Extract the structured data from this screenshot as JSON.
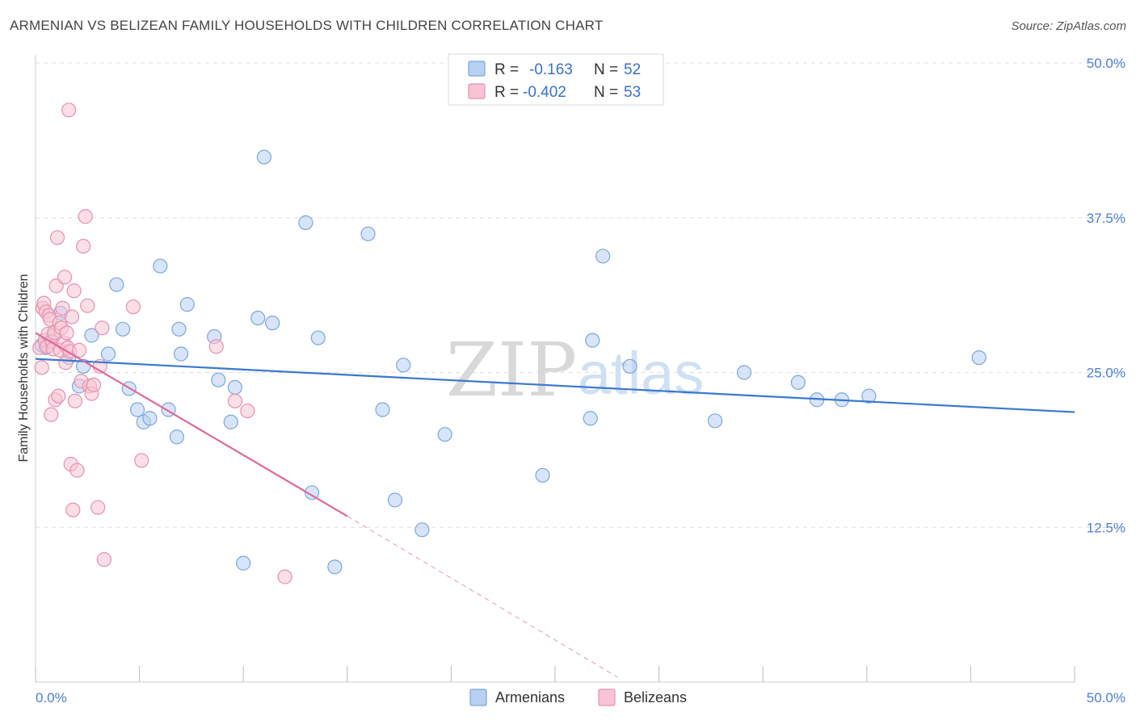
{
  "title": "ARMENIAN VS BELIZEAN FAMILY HOUSEHOLDS WITH CHILDREN CORRELATION CHART",
  "source": "Source: ZipAtlas.com",
  "watermark": {
    "zip": "ZIP",
    "atlas": "atlas"
  },
  "colors": {
    "armenians_fill": "#b8d0f2",
    "armenians_stroke": "#7aa6e0",
    "armenians_line": "#3a78d0",
    "belizeans_fill": "#f8c4d4",
    "belizeans_stroke": "#e890ac",
    "belizeans_line": "#e06898",
    "tick_text": "#4a7fd4",
    "grid": "#dddddd"
  },
  "legend": {
    "rows": [
      {
        "r_label": "R = ",
        "r_value": "-0.163",
        "n_label": "N = ",
        "n_value": "52"
      },
      {
        "r_label": "R = ",
        "r_value": "-0.402",
        "n_label": "N = ",
        "n_value": "53"
      }
    ]
  },
  "chart_data": {
    "type": "scatter",
    "title": "ARMENIAN VS BELIZEAN FAMILY HOUSEHOLDS WITH CHILDREN CORRELATION CHART",
    "xlabel": "",
    "ylabel": "Family Households with Children",
    "xlim": [
      0,
      50
    ],
    "ylim": [
      0,
      50
    ],
    "x_tick_labels": [
      "0.0%",
      "50.0%"
    ],
    "y_ticks": [
      12.5,
      25.0,
      37.5,
      50.0
    ],
    "y_tick_labels": [
      "12.5%",
      "25.0%",
      "37.5%",
      "50.0%"
    ],
    "grid": true,
    "legend_position": "top-center",
    "series": [
      {
        "name": "Armenians",
        "r": -0.163,
        "n": 52,
        "trend": {
          "x0": 0,
          "y0": 26.1,
          "x1": 50,
          "y1": 21.8
        },
        "points": [
          [
            0.3,
            27.2
          ],
          [
            0.5,
            27.0
          ],
          [
            0.7,
            27.5
          ],
          [
            0.9,
            28.0
          ],
          [
            1.2,
            29.8
          ],
          [
            1.6,
            26.2
          ],
          [
            2.1,
            23.9
          ],
          [
            2.3,
            25.5
          ],
          [
            2.7,
            28.0
          ],
          [
            3.5,
            26.5
          ],
          [
            3.9,
            32.1
          ],
          [
            4.2,
            28.5
          ],
          [
            4.5,
            23.7
          ],
          [
            4.9,
            22.0
          ],
          [
            5.2,
            21.0
          ],
          [
            5.5,
            21.3
          ],
          [
            6.0,
            33.6
          ],
          [
            6.4,
            22.0
          ],
          [
            6.8,
            19.8
          ],
          [
            6.9,
            28.5
          ],
          [
            7.0,
            26.5
          ],
          [
            7.3,
            30.5
          ],
          [
            8.6,
            27.9
          ],
          [
            8.8,
            24.4
          ],
          [
            9.4,
            21.0
          ],
          [
            9.6,
            23.8
          ],
          [
            10.0,
            9.6
          ],
          [
            10.7,
            29.4
          ],
          [
            11.0,
            42.4
          ],
          [
            11.4,
            29.0
          ],
          [
            13.0,
            37.1
          ],
          [
            13.3,
            15.3
          ],
          [
            13.6,
            27.8
          ],
          [
            14.4,
            9.3
          ],
          [
            16.0,
            36.2
          ],
          [
            16.7,
            22.0
          ],
          [
            17.3,
            14.7
          ],
          [
            17.7,
            25.6
          ],
          [
            18.6,
            12.3
          ],
          [
            19.7,
            20.0
          ],
          [
            24.4,
            16.7
          ],
          [
            26.7,
            21.3
          ],
          [
            26.8,
            27.6
          ],
          [
            27.3,
            34.4
          ],
          [
            28.6,
            25.5
          ],
          [
            32.7,
            21.1
          ],
          [
            34.1,
            25.0
          ],
          [
            36.7,
            24.2
          ],
          [
            37.6,
            22.8
          ],
          [
            38.8,
            22.8
          ],
          [
            40.1,
            23.1
          ],
          [
            45.4,
            26.2
          ]
        ]
      },
      {
        "name": "Belizeans",
        "r": -0.402,
        "n": 53,
        "trend": {
          "x0": 0,
          "y0": 28.2,
          "x1": 15,
          "y1": 13.4,
          "dash_x1": 28.0,
          "dash_y1": 0.4
        },
        "points": [
          [
            0.2,
            27.0
          ],
          [
            0.3,
            25.4
          ],
          [
            0.35,
            30.2
          ],
          [
            0.4,
            30.6
          ],
          [
            0.45,
            27.6
          ],
          [
            0.5,
            29.9
          ],
          [
            0.55,
            27.1
          ],
          [
            0.6,
            28.1
          ],
          [
            0.65,
            29.6
          ],
          [
            0.7,
            29.3
          ],
          [
            0.75,
            21.6
          ],
          [
            0.8,
            27.5
          ],
          [
            0.85,
            26.9
          ],
          [
            0.9,
            28.2
          ],
          [
            0.95,
            22.8
          ],
          [
            1.0,
            32.0
          ],
          [
            1.05,
            35.9
          ],
          [
            1.1,
            23.1
          ],
          [
            1.15,
            29.0
          ],
          [
            1.2,
            26.8
          ],
          [
            1.25,
            28.6
          ],
          [
            1.3,
            30.2
          ],
          [
            1.35,
            27.4
          ],
          [
            1.4,
            32.7
          ],
          [
            1.45,
            25.8
          ],
          [
            1.5,
            28.2
          ],
          [
            1.55,
            27.0
          ],
          [
            1.6,
            46.2
          ],
          [
            1.65,
            26.7
          ],
          [
            1.7,
            17.6
          ],
          [
            1.75,
            29.5
          ],
          [
            1.8,
            13.9
          ],
          [
            1.85,
            31.6
          ],
          [
            1.9,
            22.7
          ],
          [
            2.0,
            17.1
          ],
          [
            2.1,
            26.8
          ],
          [
            2.2,
            24.3
          ],
          [
            2.3,
            35.2
          ],
          [
            2.4,
            37.6
          ],
          [
            2.5,
            30.4
          ],
          [
            2.6,
            23.9
          ],
          [
            2.7,
            23.3
          ],
          [
            2.8,
            24.0
          ],
          [
            3.0,
            14.1
          ],
          [
            3.1,
            25.5
          ],
          [
            3.2,
            28.6
          ],
          [
            3.3,
            9.9
          ],
          [
            4.7,
            30.3
          ],
          [
            5.1,
            17.9
          ],
          [
            8.7,
            27.1
          ],
          [
            9.6,
            22.7
          ],
          [
            10.2,
            21.9
          ],
          [
            12.0,
            8.5
          ]
        ]
      }
    ]
  },
  "bottom_legend": [
    "Armenians",
    "Belizeans"
  ]
}
